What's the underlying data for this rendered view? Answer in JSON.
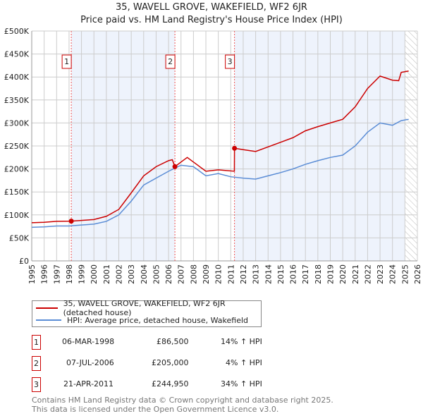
{
  "chart_data": {
    "type": "line",
    "title": "35, WAVELL GROVE, WAKEFIELD, WF2 6JR",
    "subtitle": "Price paid vs. HM Land Registry's House Price Index (HPI)",
    "xlim": [
      1995,
      2026
    ],
    "ylim": [
      0,
      500000
    ],
    "xticks": [
      "1995",
      "1996",
      "1997",
      "1998",
      "1999",
      "2000",
      "2001",
      "2002",
      "2003",
      "2004",
      "2005",
      "2006",
      "2007",
      "2008",
      "2009",
      "2010",
      "2011",
      "2012",
      "2013",
      "2014",
      "2015",
      "2016",
      "2017",
      "2018",
      "2019",
      "2020",
      "2021",
      "2022",
      "2023",
      "2024",
      "2025",
      "2026"
    ],
    "yticks": [
      {
        "v": 0,
        "l": "£0"
      },
      {
        "v": 50000,
        "l": "£50K"
      },
      {
        "v": 100000,
        "l": "£100K"
      },
      {
        "v": 150000,
        "l": "£150K"
      },
      {
        "v": 200000,
        "l": "£200K"
      },
      {
        "v": 250000,
        "l": "£250K"
      },
      {
        "v": 300000,
        "l": "£300K"
      },
      {
        "v": 350000,
        "l": "£350K"
      },
      {
        "v": 400000,
        "l": "£400K"
      },
      {
        "v": 450000,
        "l": "£450K"
      },
      {
        "v": 500000,
        "l": "£500K"
      }
    ],
    "grid": true,
    "series": [
      {
        "name": "35, WAVELL GROVE, WAKEFIELD, WF2 6JR (detached house)",
        "color": "#cc0000",
        "x": [
          1995,
          1996,
          1997,
          1998.18,
          1999,
          2000,
          2001,
          2002,
          2003,
          2004,
          2005,
          2006,
          2006.3,
          2006.51,
          2007,
          2007.5,
          2008,
          2009,
          2010,
          2011.29,
          2011.3,
          2012,
          2013,
          2014,
          2015,
          2016,
          2017,
          2018,
          2019,
          2020,
          2021,
          2022,
          2023,
          2024,
          2024.5,
          2024.7,
          2025.3
        ],
        "y": [
          83000,
          84000,
          86000,
          86500,
          88000,
          90000,
          97000,
          112000,
          148000,
          185000,
          205000,
          218000,
          220000,
          205000,
          215000,
          225000,
          215000,
          195000,
          198000,
          195000,
          244950,
          242000,
          238000,
          248000,
          258000,
          268000,
          283000,
          292000,
          300000,
          308000,
          335000,
          375000,
          402000,
          393000,
          392000,
          410000,
          413000
        ]
      },
      {
        "name": "HPI: Average price, detached house, Wakefield",
        "color": "#5b8dd6",
        "x": [
          1995,
          1996,
          1997,
          1998,
          1999,
          2000,
          2001,
          2002,
          2003,
          2004,
          2005,
          2006,
          2007,
          2008,
          2009,
          2010,
          2011,
          2012,
          2013,
          2014,
          2015,
          2016,
          2017,
          2018,
          2019,
          2020,
          2021,
          2022,
          2023,
          2024,
          2024.7,
          2025.3
        ],
        "y": [
          73000,
          74000,
          76000,
          76000,
          78000,
          80000,
          86000,
          100000,
          130000,
          165000,
          180000,
          195000,
          208000,
          205000,
          185000,
          190000,
          183000,
          180000,
          178000,
          185000,
          192000,
          200000,
          210000,
          218000,
          225000,
          230000,
          250000,
          280000,
          300000,
          295000,
          305000,
          308000
        ]
      }
    ],
    "sales": [
      {
        "n": "1",
        "x": 1998.18,
        "price": 86500,
        "date": "06-MAR-1998",
        "price_label": "£86,500",
        "hpi": "14% ↑ HPI"
      },
      {
        "n": "2",
        "x": 2006.51,
        "price": 205000,
        "date": "07-JUL-2006",
        "price_label": "£205,000",
        "hpi": "4% ↑ HPI"
      },
      {
        "n": "3",
        "x": 2011.3,
        "price": 244950,
        "date": "21-APR-2011",
        "price_label": "£244,950",
        "hpi": "34% ↑ HPI"
      }
    ],
    "forecast_start": 2025.0,
    "legend_position": "below"
  },
  "footer": [
    "Contains HM Land Registry data © Crown copyright and database right 2025.",
    "This data is licensed under the Open Government Licence v3.0."
  ]
}
